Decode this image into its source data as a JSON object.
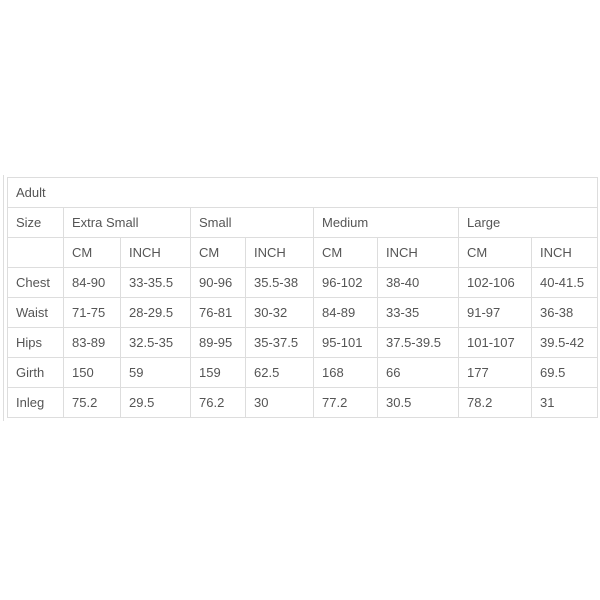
{
  "title": "Adult",
  "size_label": "Size",
  "sizes": [
    "Extra Small",
    "Small",
    "Medium",
    "Large"
  ],
  "units": [
    "CM",
    "INCH",
    "CM",
    "INCH",
    "CM",
    "INCH",
    "CM",
    "INCH"
  ],
  "rows": [
    {
      "label": "Chest",
      "values": [
        "84-90",
        "33-35.5",
        "90-96",
        "35.5-38",
        "96-102",
        "38-40",
        "102-106",
        "40-41.5"
      ]
    },
    {
      "label": "Waist",
      "values": [
        "71-75",
        "28-29.5",
        "76-81",
        "30-32",
        "84-89",
        "33-35",
        "91-97",
        "36-38"
      ]
    },
    {
      "label": "Hips",
      "values": [
        "83-89",
        "32.5-35",
        "89-95",
        "35-37.5",
        "95-101",
        "37.5-39.5",
        "101-107",
        "39.5-42"
      ]
    },
    {
      "label": "Girth",
      "values": [
        "150",
        "59",
        "159",
        "62.5",
        "168",
        "66",
        "177",
        "69.5"
      ]
    },
    {
      "label": "Inleg",
      "values": [
        "75.2",
        "29.5",
        "76.2",
        "30",
        "77.2",
        "30.5",
        "78.2",
        "31"
      ]
    }
  ]
}
